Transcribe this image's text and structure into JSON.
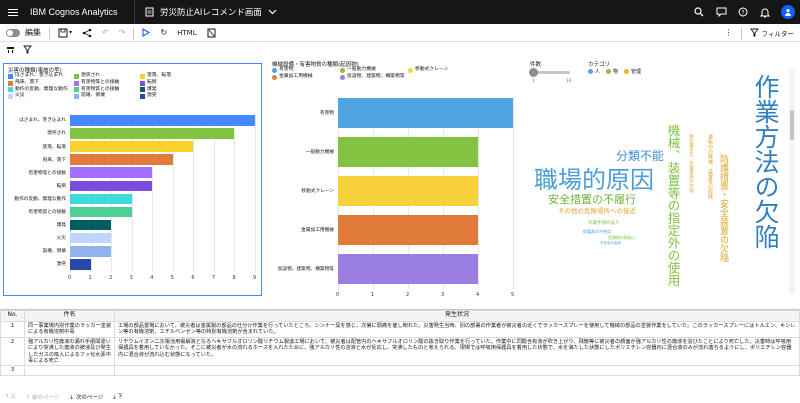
{
  "app": {
    "brand": "IBM Cognos Analytics",
    "doc_title": "労災防止AIレコメンド画面"
  },
  "toolbar": {
    "edit": "編集",
    "html": "HTML",
    "filter": "フィルター"
  },
  "viz1": {
    "title": "災害の種類(事故の型)",
    "legend": [
      {
        "label": "はさまれ、巻き込まれ",
        "color": "#4589ff"
      },
      {
        "label": "激突され",
        "color": "#82c341"
      },
      {
        "label": "墜落、転落",
        "color": "#fad02c"
      },
      {
        "label": "飛来、落下",
        "color": "#e07b39"
      },
      {
        "label": "有害物等との接触",
        "color": "#a56eff"
      },
      {
        "label": "転倒",
        "color": "#7c4ce0"
      },
      {
        "label": "動作の反動、無理な動作",
        "color": "#3ddbd9"
      },
      {
        "label": "有害物質との接触",
        "color": "#4ed094"
      },
      {
        "label": "爆発",
        "color": "#005d5d"
      },
      {
        "label": "火災",
        "color": "#bfd7ff"
      },
      {
        "label": "崩壊、倒壊",
        "color": "#8fb3ef"
      },
      {
        "label": "激突",
        "color": "#264aa8"
      }
    ]
  },
  "chart_data": [
    {
      "type": "bar",
      "orientation": "horizontal",
      "title": "",
      "categories": [
        "はさまれ、巻き込まれ",
        "激突され",
        "墜落、転落",
        "飛来、落下",
        "有害物等との接触",
        "転倒",
        "動作の反動、無理な動作",
        "有害物質との接触",
        "爆発",
        "火災",
        "崩壊、倒壊",
        "激突"
      ],
      "values": [
        9,
        8,
        6,
        5,
        4,
        4,
        3,
        3,
        2,
        2,
        2,
        1
      ],
      "colors": [
        "#4589ff",
        "#82c341",
        "#fad02c",
        "#e07b39",
        "#a56eff",
        "#7c4ce0",
        "#3ddbd9",
        "#4ed094",
        "#005d5d",
        "#bfd7ff",
        "#8fb3ef",
        "#264aa8"
      ],
      "xticks": [
        "0",
        "1",
        "2",
        "3",
        "4",
        "5",
        "6",
        "7",
        "8",
        "9"
      ],
      "xlim": [
        0,
        9
      ]
    },
    {
      "type": "bar",
      "orientation": "horizontal",
      "title": "機械設備・有害物質の種類(起因物)",
      "legend": [
        "有害物",
        "一般動力機械",
        "移動式クレーン",
        "金属加工用機械",
        "仮設物、建築物、構築物等"
      ],
      "categories": [
        "有害物",
        "一般動力機械",
        "移動式クレーン",
        "金属加工用機械",
        "仮設物、建築物、構築物等"
      ],
      "values": [
        5,
        4,
        4,
        4,
        4
      ],
      "colors": [
        "#4da4de",
        "#82c341",
        "#f8d23a",
        "#e07b39",
        "#9a7ee0"
      ],
      "xticks": [
        "0",
        "1",
        "2",
        "3",
        "4",
        "5"
      ],
      "xlim": [
        0,
        5
      ]
    }
  ],
  "controls": {
    "count_label": "件数",
    "count_min": "1",
    "count_max": "14",
    "category_label": "カテゴリ",
    "categories": [
      {
        "label": "人",
        "color": "#4da4de"
      },
      {
        "label": "物",
        "color": "#82c341"
      },
      {
        "label": "管理",
        "color": "#f0b030"
      }
    ]
  },
  "cloud": {
    "words": [
      {
        "t": "職場的原因",
        "c": "#4a9fd8"
      },
      {
        "t": "作業方法の欠陥",
        "c": "#2e7fc0"
      },
      {
        "t": "分類不能",
        "c": "#3d8fd0"
      },
      {
        "t": "安全措置の不履行",
        "c": "#6db33f"
      },
      {
        "t": "機械、装置等の指定外の使用",
        "c": "#82c341"
      },
      {
        "t": "防護措置・安全装置の欠陥",
        "c": "#e0a32e"
      },
      {
        "t": "その他の危険場所への接近",
        "c": "#e0a32e"
      },
      {
        "t": "運転中の機械、装置等の掃除",
        "c": "#e0a32e"
      },
      {
        "t": "作業手順の誤り",
        "c": "#82c341"
      },
      {
        "t": "保護具の不使用",
        "c": "#4a9fd8"
      },
      {
        "t": "物の置き方、作業場所の欠陥",
        "c": "#e0a32e"
      },
      {
        "t": "危険物の取扱い",
        "c": "#82c341"
      },
      {
        "t": "不安全な姿勢",
        "c": "#4a9fd8"
      }
    ]
  },
  "table": {
    "headers": [
      "No.",
      "件名",
      "発生状況"
    ],
    "rows": [
      {
        "no": "1",
        "title": "同一事業場内別作業のラッカー塗装による有機溶剤中毒",
        "desc": "工場の部品置場において、被災者は金属製の部品の仕分け作業を行っていたところ、シンナー臭を感じ、次第に頭痛を催し倒れた。災害発生当時、別の部署の作業者が被災者の近くでラッカースプレーを使用して機械の部品の塗装作業をしていた。このラッカースプレーにはトルエン、キシレン等の有機溶剤、エチルベンゼン等の特別有機溶剤が含まれていた。"
      },
      {
        "no": "2",
        "title": "強アルカリ性廃液の漏れ手順間違いにより突沸した廃液の被液及び発生したガスの吸入によるフッ化水素中毒による死亡",
        "desc": "リチウムイオン二次電池用電解液となるヘキサフルオロリン酸リチウム製造工場において、被災者は配管内のヘキサフルオロリン酸の抜き取り作業を行っていた。作業中に同酸含有液が吹き上がり、飛散等に被災者の顔面が強アルカリ性の廃液を浴びたことにより死亡した。災害時は呼吸用保護具を着用していなかった。そこに被災者が水の流れるホースを入れたために、強アルカリ性の溶液と水が反応し、突沸したものと考えられる。現場では呼吸用保護具を着用した状態で、水を満たした状態にしたポリエチレン容器内に混合液のみが流れ落ちるようにし、ポリエチレン容器内に混合液が流れ込む状態になっていた。"
      },
      {
        "no": "3",
        "title": "",
        "desc": ""
      }
    ]
  },
  "pager": {
    "top": "上",
    "prev": "前のページ",
    "next": "次のページ",
    "bottom": "下"
  }
}
